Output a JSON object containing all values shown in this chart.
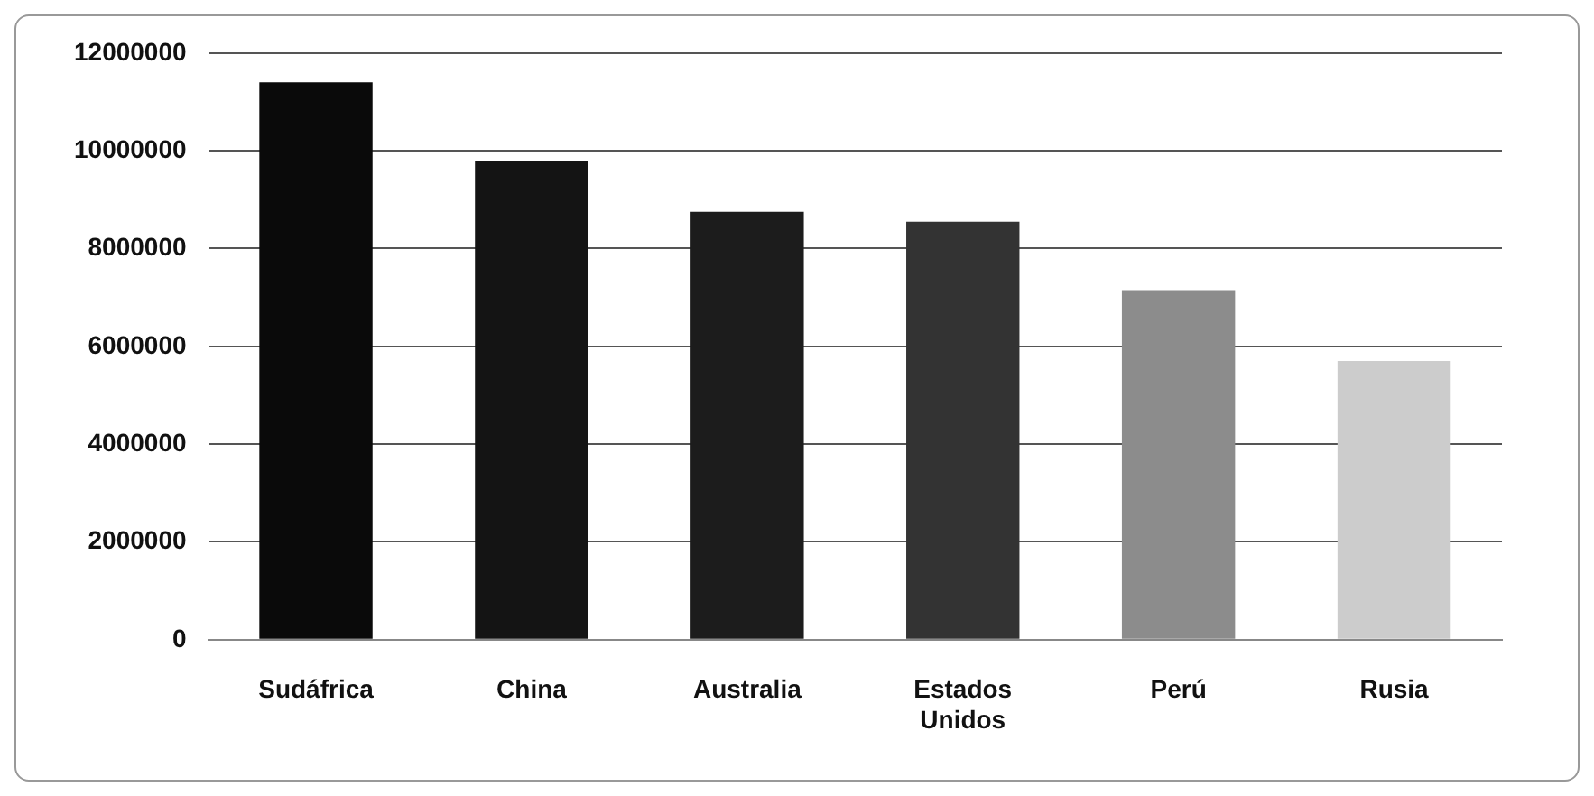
{
  "chart_data": {
    "type": "bar",
    "categories": [
      "Sudáfrica",
      "China",
      "Australia",
      "Estados Unidos",
      "Perú",
      "Rusia"
    ],
    "values": [
      11400000,
      9800000,
      8750000,
      8550000,
      7150000,
      5700000
    ],
    "colors": [
      "#0a0a0a",
      "#141414",
      "#1c1c1c",
      "#333333",
      "#8c8c8c",
      "#cccccc"
    ],
    "ylim": [
      0,
      12000000
    ],
    "yticks": [
      0,
      2000000,
      4000000,
      6000000,
      8000000,
      10000000,
      12000000
    ],
    "grid": "y",
    "legend": false
  }
}
